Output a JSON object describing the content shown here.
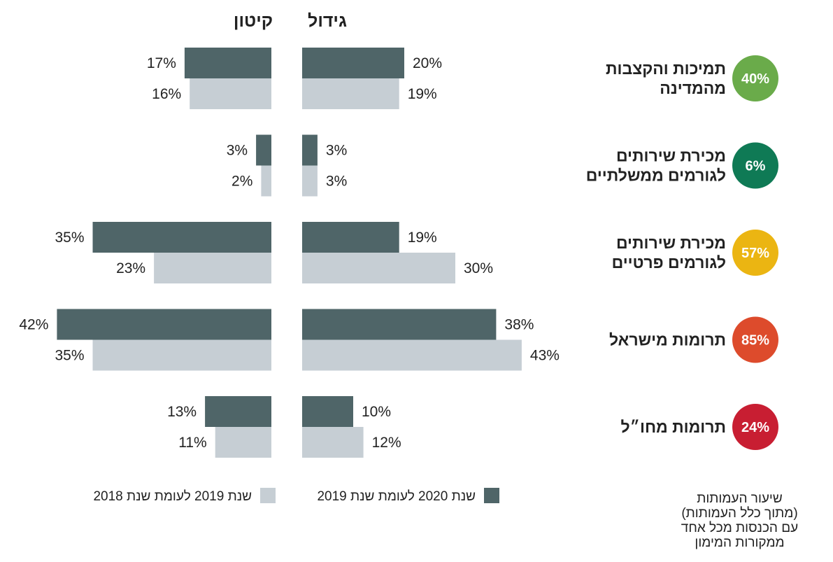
{
  "chart_data": {
    "type": "bar",
    "orientation": "horizontal-butterfly",
    "headers": {
      "growth": "גידול",
      "decline": "קיטון"
    },
    "categories": [
      {
        "label_lines": [
          "תמיכות והקצבות",
          "מהמדינה"
        ],
        "rate": "40%",
        "color": "#6aab4a"
      },
      {
        "label_lines": [
          "מכירת שירותים",
          "לגורמים ממשלתיים"
        ],
        "rate": "6%",
        "color": "#0f7a55"
      },
      {
        "label_lines": [
          "מכירת שירותים",
          "לגורמים פרטיים"
        ],
        "rate": "57%",
        "color": "#ebb512"
      },
      {
        "label_lines": [
          "תרומות מישראל"
        ],
        "rate": "85%",
        "color": "#dd4b2c"
      },
      {
        "label_lines": [
          "תרומות מחו״ל"
        ],
        "rate": "24%",
        "color": "#c81e32"
      }
    ],
    "series": [
      {
        "name": "שנת 2020 לעומת שנת 2019",
        "color": "#4f6568",
        "growth": [
          20,
          3,
          19,
          38,
          10
        ],
        "decline": [
          17,
          3,
          35,
          42,
          13
        ]
      },
      {
        "name": "שנת 2019 לעומת שנת 2018",
        "color": "#c6ced4",
        "growth": [
          19,
          3,
          30,
          43,
          12
        ],
        "decline": [
          16,
          2,
          23,
          35,
          11
        ]
      }
    ],
    "value_format": "{v}%"
  },
  "footnote": [
    "שיעור העמותות",
    "(מתוך כלל העמותות)",
    "עם הכנסות מכל אחד",
    "ממקורות המימון"
  ]
}
